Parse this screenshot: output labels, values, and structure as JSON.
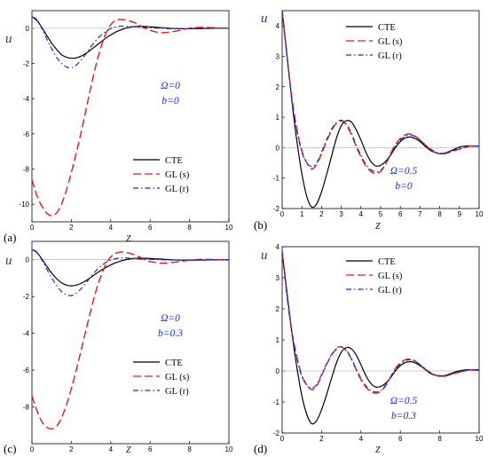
{
  "chart_data": [
    {
      "type": "line",
      "panel_label": "(a)",
      "xlabel": "z",
      "ylabel": "u",
      "xlim": [
        0,
        10
      ],
      "ylim": [
        -11,
        1
      ],
      "xticks": [
        0,
        2,
        4,
        6,
        8,
        10
      ],
      "yticks": [
        0,
        -2,
        -4,
        -6,
        -8,
        -10
      ],
      "grid": false,
      "legend": "bottom-right",
      "annotations": [
        "Ω=0",
        "b=0"
      ],
      "x": [
        0,
        0.25,
        0.5,
        0.75,
        1,
        1.25,
        1.5,
        1.75,
        2,
        2.25,
        2.5,
        2.75,
        3,
        3.25,
        3.5,
        3.75,
        4,
        4.25,
        4.5,
        4.75,
        5,
        5.25,
        5.5,
        5.75,
        6,
        6.5,
        7,
        7.5,
        8,
        8.5,
        9,
        9.5,
        10
      ],
      "series": [
        {
          "name": "CTE",
          "color": "#000000",
          "dash": "solid",
          "values": [
            0.65,
            0.45,
            0.05,
            -0.4,
            -0.85,
            -1.2,
            -1.5,
            -1.65,
            -1.7,
            -1.68,
            -1.58,
            -1.42,
            -1.22,
            -1.0,
            -0.78,
            -0.56,
            -0.38,
            -0.22,
            -0.1,
            0.0,
            0.07,
            0.1,
            0.11,
            0.1,
            0.08,
            0.04,
            0.0,
            -0.02,
            -0.03,
            -0.02,
            -0.01,
            0.0,
            0.0
          ]
        },
        {
          "name": "GL (s)",
          "color": "#e8191d",
          "dash": "long",
          "values": [
            -8.6,
            -9.5,
            -10.1,
            -10.5,
            -10.65,
            -10.5,
            -10.0,
            -9.2,
            -8.2,
            -7.1,
            -5.9,
            -4.6,
            -3.3,
            -2.1,
            -1.1,
            -0.3,
            0.2,
            0.45,
            0.5,
            0.48,
            0.4,
            0.3,
            0.15,
            0.0,
            -0.12,
            -0.25,
            -0.22,
            -0.12,
            0.0,
            0.05,
            0.04,
            0.02,
            0.0
          ]
        },
        {
          "name": "GL (r)",
          "color": "#1b2fd0",
          "dash": "dashdot",
          "values": [
            0.65,
            0.5,
            0.0,
            -0.6,
            -1.15,
            -1.65,
            -2.0,
            -2.2,
            -2.25,
            -2.1,
            -1.8,
            -1.45,
            -1.05,
            -0.7,
            -0.4,
            -0.18,
            -0.02,
            0.08,
            0.12,
            0.12,
            0.1,
            0.08,
            0.05,
            0.03,
            0.02,
            0.0,
            -0.02,
            -0.02,
            -0.01,
            0.0,
            0.0,
            0.0,
            0.0
          ]
        }
      ]
    },
    {
      "type": "line",
      "panel_label": "(b)",
      "xlabel": "z",
      "ylabel": "u",
      "xlim": [
        0,
        10
      ],
      "ylim": [
        -2,
        4.5
      ],
      "xticks": [
        0,
        1,
        2,
        3,
        4,
        5,
        6,
        7,
        8,
        9,
        10
      ],
      "yticks": [
        4,
        3,
        2,
        1,
        0,
        -1,
        -2
      ],
      "grid": false,
      "legend": "top-right",
      "annotations": [
        "Ω=0.5",
        "b=0"
      ],
      "x": [
        0,
        0.25,
        0.5,
        0.75,
        1,
        1.25,
        1.5,
        1.75,
        2,
        2.25,
        2.5,
        2.75,
        3,
        3.25,
        3.5,
        3.75,
        4,
        4.25,
        4.5,
        4.75,
        5,
        5.25,
        5.5,
        5.75,
        6,
        6.25,
        6.5,
        6.75,
        7,
        7.25,
        7.5,
        7.75,
        8,
        8.25,
        8.5,
        8.75,
        9,
        9.25,
        9.5,
        9.75,
        10
      ],
      "series": [
        {
          "name": "CTE",
          "color": "#000000",
          "dash": "solid",
          "values": [
            4.5,
            3.0,
            1.5,
            0.2,
            -0.85,
            -1.6,
            -1.95,
            -1.85,
            -1.45,
            -0.9,
            -0.3,
            0.3,
            0.72,
            0.88,
            0.85,
            0.6,
            0.25,
            -0.15,
            -0.45,
            -0.6,
            -0.58,
            -0.45,
            -0.25,
            0.0,
            0.2,
            0.32,
            0.35,
            0.3,
            0.2,
            0.05,
            -0.08,
            -0.16,
            -0.2,
            -0.18,
            -0.12,
            -0.05,
            0.02,
            0.05,
            0.06,
            0.05,
            0.04
          ]
        },
        {
          "name": "GL (s)",
          "color": "#e8191d",
          "dash": "long",
          "values": [
            4.5,
            3.0,
            1.6,
            0.6,
            -0.1,
            -0.5,
            -0.7,
            -0.55,
            -0.2,
            0.2,
            0.55,
            0.8,
            0.88,
            0.75,
            0.45,
            0.05,
            -0.3,
            -0.6,
            -0.78,
            -0.85,
            -0.78,
            -0.55,
            -0.2,
            0.1,
            0.3,
            0.42,
            0.45,
            0.38,
            0.25,
            0.1,
            -0.05,
            -0.15,
            -0.2,
            -0.2,
            -0.15,
            -0.1,
            -0.05,
            0.0,
            0.05,
            0.05,
            0.05
          ]
        },
        {
          "name": "GL (r)",
          "color": "#1b2fd0",
          "dash": "dashdot",
          "values": [
            4.5,
            3.0,
            1.55,
            0.55,
            -0.15,
            -0.5,
            -0.62,
            -0.5,
            -0.15,
            0.25,
            0.6,
            0.82,
            0.9,
            0.78,
            0.5,
            0.1,
            -0.25,
            -0.55,
            -0.72,
            -0.8,
            -0.75,
            -0.55,
            -0.25,
            0.05,
            0.25,
            0.38,
            0.42,
            0.37,
            0.25,
            0.1,
            -0.03,
            -0.13,
            -0.18,
            -0.18,
            -0.14,
            -0.08,
            -0.03,
            0.0,
            0.04,
            0.05,
            0.05
          ]
        }
      ]
    },
    {
      "type": "line",
      "panel_label": "(c)",
      "xlabel": "z",
      "ylabel": "u",
      "xlim": [
        0,
        10
      ],
      "ylim": [
        -10,
        1
      ],
      "xticks": [
        0,
        2,
        4,
        6,
        8,
        10
      ],
      "yticks": [
        0,
        -2,
        -4,
        -6,
        -8
      ],
      "grid": false,
      "legend": "bottom-right",
      "annotations": [
        "Ω=0",
        "b=0.3"
      ],
      "x": [
        0,
        0.25,
        0.5,
        0.75,
        1,
        1.25,
        1.5,
        1.75,
        2,
        2.25,
        2.5,
        2.75,
        3,
        3.25,
        3.5,
        3.75,
        4,
        4.25,
        4.5,
        4.75,
        5,
        5.25,
        5.5,
        5.75,
        6,
        6.5,
        7,
        7.5,
        8,
        8.5,
        9,
        9.5,
        10
      ],
      "series": [
        {
          "name": "CTE",
          "color": "#000000",
          "dash": "solid",
          "values": [
            0.55,
            0.4,
            0.05,
            -0.35,
            -0.72,
            -1.02,
            -1.25,
            -1.38,
            -1.42,
            -1.38,
            -1.28,
            -1.13,
            -0.95,
            -0.76,
            -0.58,
            -0.42,
            -0.28,
            -0.16,
            -0.07,
            0.0,
            0.05,
            0.08,
            0.09,
            0.08,
            0.07,
            0.04,
            0.0,
            -0.02,
            -0.02,
            -0.02,
            -0.01,
            0.0,
            0.0
          ]
        },
        {
          "name": "GL (s)",
          "color": "#e8191d",
          "dash": "long",
          "values": [
            -7.4,
            -8.2,
            -8.8,
            -9.1,
            -9.2,
            -9.05,
            -8.6,
            -7.9,
            -7.0,
            -6.0,
            -4.9,
            -3.8,
            -2.7,
            -1.7,
            -0.9,
            -0.25,
            0.15,
            0.35,
            0.42,
            0.4,
            0.34,
            0.25,
            0.13,
            0.0,
            -0.1,
            -0.18,
            -0.16,
            -0.1,
            -0.02,
            0.02,
            0.02,
            0.01,
            0.0
          ]
        },
        {
          "name": "GL (r)",
          "color": "#1b2fd0",
          "dash": "dashdot",
          "values": [
            0.55,
            0.42,
            0.0,
            -0.5,
            -0.98,
            -1.4,
            -1.72,
            -1.9,
            -1.95,
            -1.82,
            -1.57,
            -1.25,
            -0.92,
            -0.6,
            -0.34,
            -0.15,
            -0.02,
            0.06,
            0.1,
            0.1,
            0.08,
            0.06,
            0.04,
            0.03,
            0.02,
            0.0,
            -0.01,
            -0.01,
            -0.01,
            0.0,
            0.0,
            0.0,
            0.0
          ]
        }
      ]
    },
    {
      "type": "line",
      "panel_label": "(d)",
      "xlabel": "z",
      "ylabel": "u",
      "xlim": [
        0,
        10
      ],
      "ylim": [
        -2,
        4
      ],
      "xticks": [
        0,
        2,
        4,
        6,
        8,
        10
      ],
      "yticks": [
        4,
        3,
        2,
        1,
        0,
        -1,
        -2
      ],
      "grid": false,
      "legend": "top-right",
      "annotations": [
        "Ω=0.5",
        "b=0.3"
      ],
      "x": [
        0,
        0.25,
        0.5,
        0.75,
        1,
        1.25,
        1.5,
        1.75,
        2,
        2.25,
        2.5,
        2.75,
        3,
        3.25,
        3.5,
        3.75,
        4,
        4.25,
        4.5,
        4.75,
        5,
        5.25,
        5.5,
        5.75,
        6,
        6.25,
        6.5,
        6.75,
        7,
        7.25,
        7.5,
        7.75,
        8,
        8.25,
        8.5,
        8.75,
        9,
        9.25,
        9.5,
        9.75,
        10
      ],
      "series": [
        {
          "name": "CTE",
          "color": "#000000",
          "dash": "solid",
          "values": [
            3.85,
            2.5,
            1.2,
            0.1,
            -0.8,
            -1.4,
            -1.7,
            -1.6,
            -1.25,
            -0.78,
            -0.25,
            0.25,
            0.6,
            0.75,
            0.72,
            0.52,
            0.2,
            -0.15,
            -0.4,
            -0.52,
            -0.5,
            -0.4,
            -0.22,
            0.0,
            0.17,
            0.27,
            0.3,
            0.26,
            0.17,
            0.05,
            -0.07,
            -0.14,
            -0.17,
            -0.15,
            -0.1,
            -0.04,
            0.0,
            0.03,
            0.04,
            0.03,
            0.02
          ]
        },
        {
          "name": "GL (s)",
          "color": "#e8191d",
          "dash": "long",
          "values": [
            3.85,
            2.4,
            1.25,
            0.45,
            -0.15,
            -0.45,
            -0.6,
            -0.48,
            -0.15,
            0.2,
            0.5,
            0.7,
            0.78,
            0.65,
            0.4,
            0.05,
            -0.28,
            -0.52,
            -0.67,
            -0.72,
            -0.66,
            -0.48,
            -0.2,
            0.08,
            0.26,
            0.36,
            0.38,
            0.32,
            0.2,
            0.07,
            -0.05,
            -0.13,
            -0.17,
            -0.17,
            -0.13,
            -0.08,
            -0.04,
            0.0,
            0.03,
            0.04,
            0.04
          ]
        },
        {
          "name": "GL (r)",
          "color": "#1b2fd0",
          "dash": "dashdot",
          "values": [
            3.85,
            2.4,
            1.2,
            0.4,
            -0.18,
            -0.45,
            -0.55,
            -0.44,
            -0.12,
            0.22,
            0.52,
            0.72,
            0.78,
            0.67,
            0.42,
            0.08,
            -0.24,
            -0.48,
            -0.62,
            -0.68,
            -0.63,
            -0.46,
            -0.2,
            0.05,
            0.22,
            0.33,
            0.36,
            0.3,
            0.2,
            0.07,
            -0.04,
            -0.12,
            -0.15,
            -0.15,
            -0.12,
            -0.07,
            -0.03,
            0.0,
            0.03,
            0.04,
            0.04
          ]
        }
      ]
    }
  ]
}
